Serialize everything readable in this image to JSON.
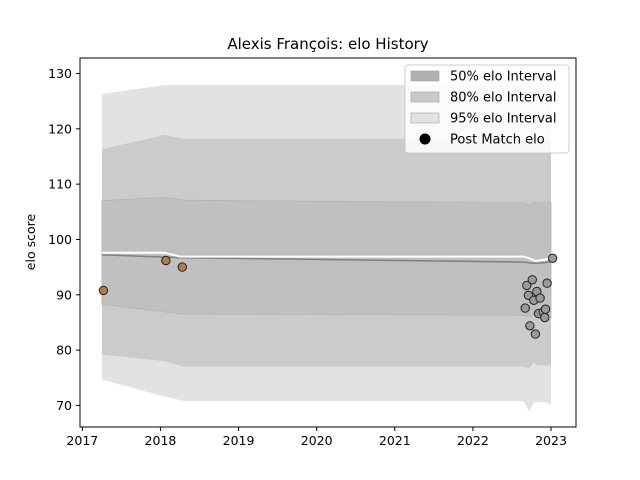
{
  "chart_data": {
    "type": "scatter",
    "title": "Alexis François: elo History",
    "xlabel": "",
    "ylabel": "elo score",
    "xlim": [
      2016.97,
      2023.32
    ],
    "ylim": [
      66.1,
      132.8
    ],
    "x_ticks": [
      2017,
      2018,
      2019,
      2020,
      2021,
      2022,
      2023
    ],
    "y_ticks": [
      70,
      80,
      90,
      100,
      110,
      120,
      130
    ],
    "grid": false,
    "legend_position": "top-right",
    "legend": [
      {
        "label": "50% elo Interval",
        "color": "#b0b0b0"
      },
      {
        "label": "80% elo Interval",
        "color": "#c9c9c9"
      },
      {
        "label": "95% elo Interval",
        "color": "#e2e2e2"
      },
      {
        "label": "Post Match elo",
        "color": "#000000"
      }
    ],
    "bands": {
      "x": [
        2017.25,
        2018.05,
        2018.3,
        2022.65,
        2022.72,
        2022.78,
        2022.83,
        2022.92,
        2023.0
      ],
      "p95_upper": [
        126.3,
        127.9,
        127.9,
        127.9,
        127.9,
        127.9,
        127.9,
        127.9,
        127.9
      ],
      "p95_lower": [
        74.7,
        71.6,
        70.8,
        70.8,
        68.9,
        70.6,
        70.6,
        70.6,
        70.2
      ],
      "p80_upper": [
        116.3,
        118.9,
        118.2,
        118.2,
        118.2,
        118.2,
        118.2,
        118.2,
        118.2
      ],
      "p80_lower": [
        79.2,
        78.0,
        77.0,
        77.0,
        76.6,
        77.8,
        77.2,
        77.2,
        77.2
      ],
      "p50_upper": [
        107.0,
        107.6,
        107.1,
        106.6,
        106.2,
        106.8,
        106.5,
        106.8,
        106.6
      ],
      "p50_lower": [
        88.3,
        86.9,
        86.5,
        86.3,
        86.0,
        86.4,
        86.2,
        86.3,
        85.9
      ]
    },
    "mean_line": {
      "x": [
        2017.25,
        2018.3,
        2022.65,
        2022.78,
        2022.92,
        2023.0
      ],
      "y": [
        97.2,
        96.7,
        95.9,
        95.7,
        95.8,
        96.0
      ],
      "color": "#808080"
    },
    "white_line": {
      "x": [
        2017.25,
        2018.05,
        2018.25,
        2022.65,
        2022.72,
        2022.8,
        2022.9,
        2023.0,
        2023.03
      ],
      "y": [
        97.6,
        97.6,
        96.9,
        96.9,
        96.6,
        96.1,
        96.3,
        96.6,
        96.6
      ],
      "color": "#ffffff"
    },
    "series": [
      {
        "color": "#b97a45",
        "points": [
          {
            "x": 2017.27,
            "y": 90.8
          },
          {
            "x": 2018.07,
            "y": 96.2
          },
          {
            "x": 2018.28,
            "y": 95.0
          }
        ]
      },
      {
        "color": "#999999",
        "points": [
          {
            "x": 2022.67,
            "y": 87.6
          },
          {
            "x": 2022.69,
            "y": 91.7
          },
          {
            "x": 2022.71,
            "y": 89.9
          },
          {
            "x": 2022.73,
            "y": 84.4
          },
          {
            "x": 2022.76,
            "y": 92.7
          },
          {
            "x": 2022.78,
            "y": 89.0
          },
          {
            "x": 2022.8,
            "y": 82.9
          },
          {
            "x": 2022.82,
            "y": 90.6
          },
          {
            "x": 2022.84,
            "y": 86.6
          },
          {
            "x": 2022.86,
            "y": 89.4
          },
          {
            "x": 2022.9,
            "y": 86.9
          },
          {
            "x": 2022.92,
            "y": 85.9
          },
          {
            "x": 2022.93,
            "y": 87.4
          },
          {
            "x": 2022.95,
            "y": 92.1
          },
          {
            "x": 2023.02,
            "y": 96.6
          }
        ]
      }
    ]
  }
}
